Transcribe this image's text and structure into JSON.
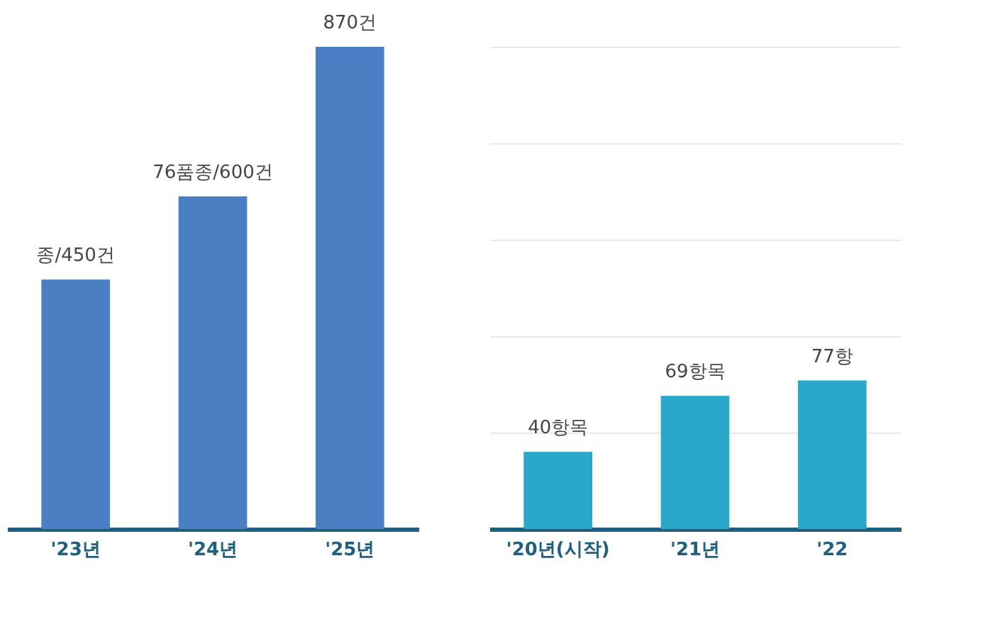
{
  "chart_data": [
    {
      "type": "bar",
      "categories": [
        "'23년",
        "'24년",
        "'25년"
      ],
      "values": [
        450,
        600,
        870
      ],
      "color": "#4a7fc4",
      "value_labels": [
        "종/450건",
        "76품종/600건",
        "870건"
      ],
      "tick_labels": "x",
      "grid": false
    },
    {
      "type": "bar",
      "categories": [
        "'20년(시작)",
        "'21년",
        "'22"
      ],
      "values": [
        40,
        69,
        77
      ],
      "color": "#2aa8cc",
      "value_labels": [
        "40항목",
        "69항목",
        "77항"
      ],
      "ylim": [
        0,
        250
      ],
      "yticks": [
        {
          "value": 50,
          "label": null
        },
        {
          "value": 100,
          "label": null
        },
        {
          "value": 150,
          "label": null
        },
        {
          "value": 200,
          "label": null
        },
        {
          "value": 250,
          "label": null
        }
      ],
      "tick_labels": "x",
      "grid": "y"
    }
  ]
}
